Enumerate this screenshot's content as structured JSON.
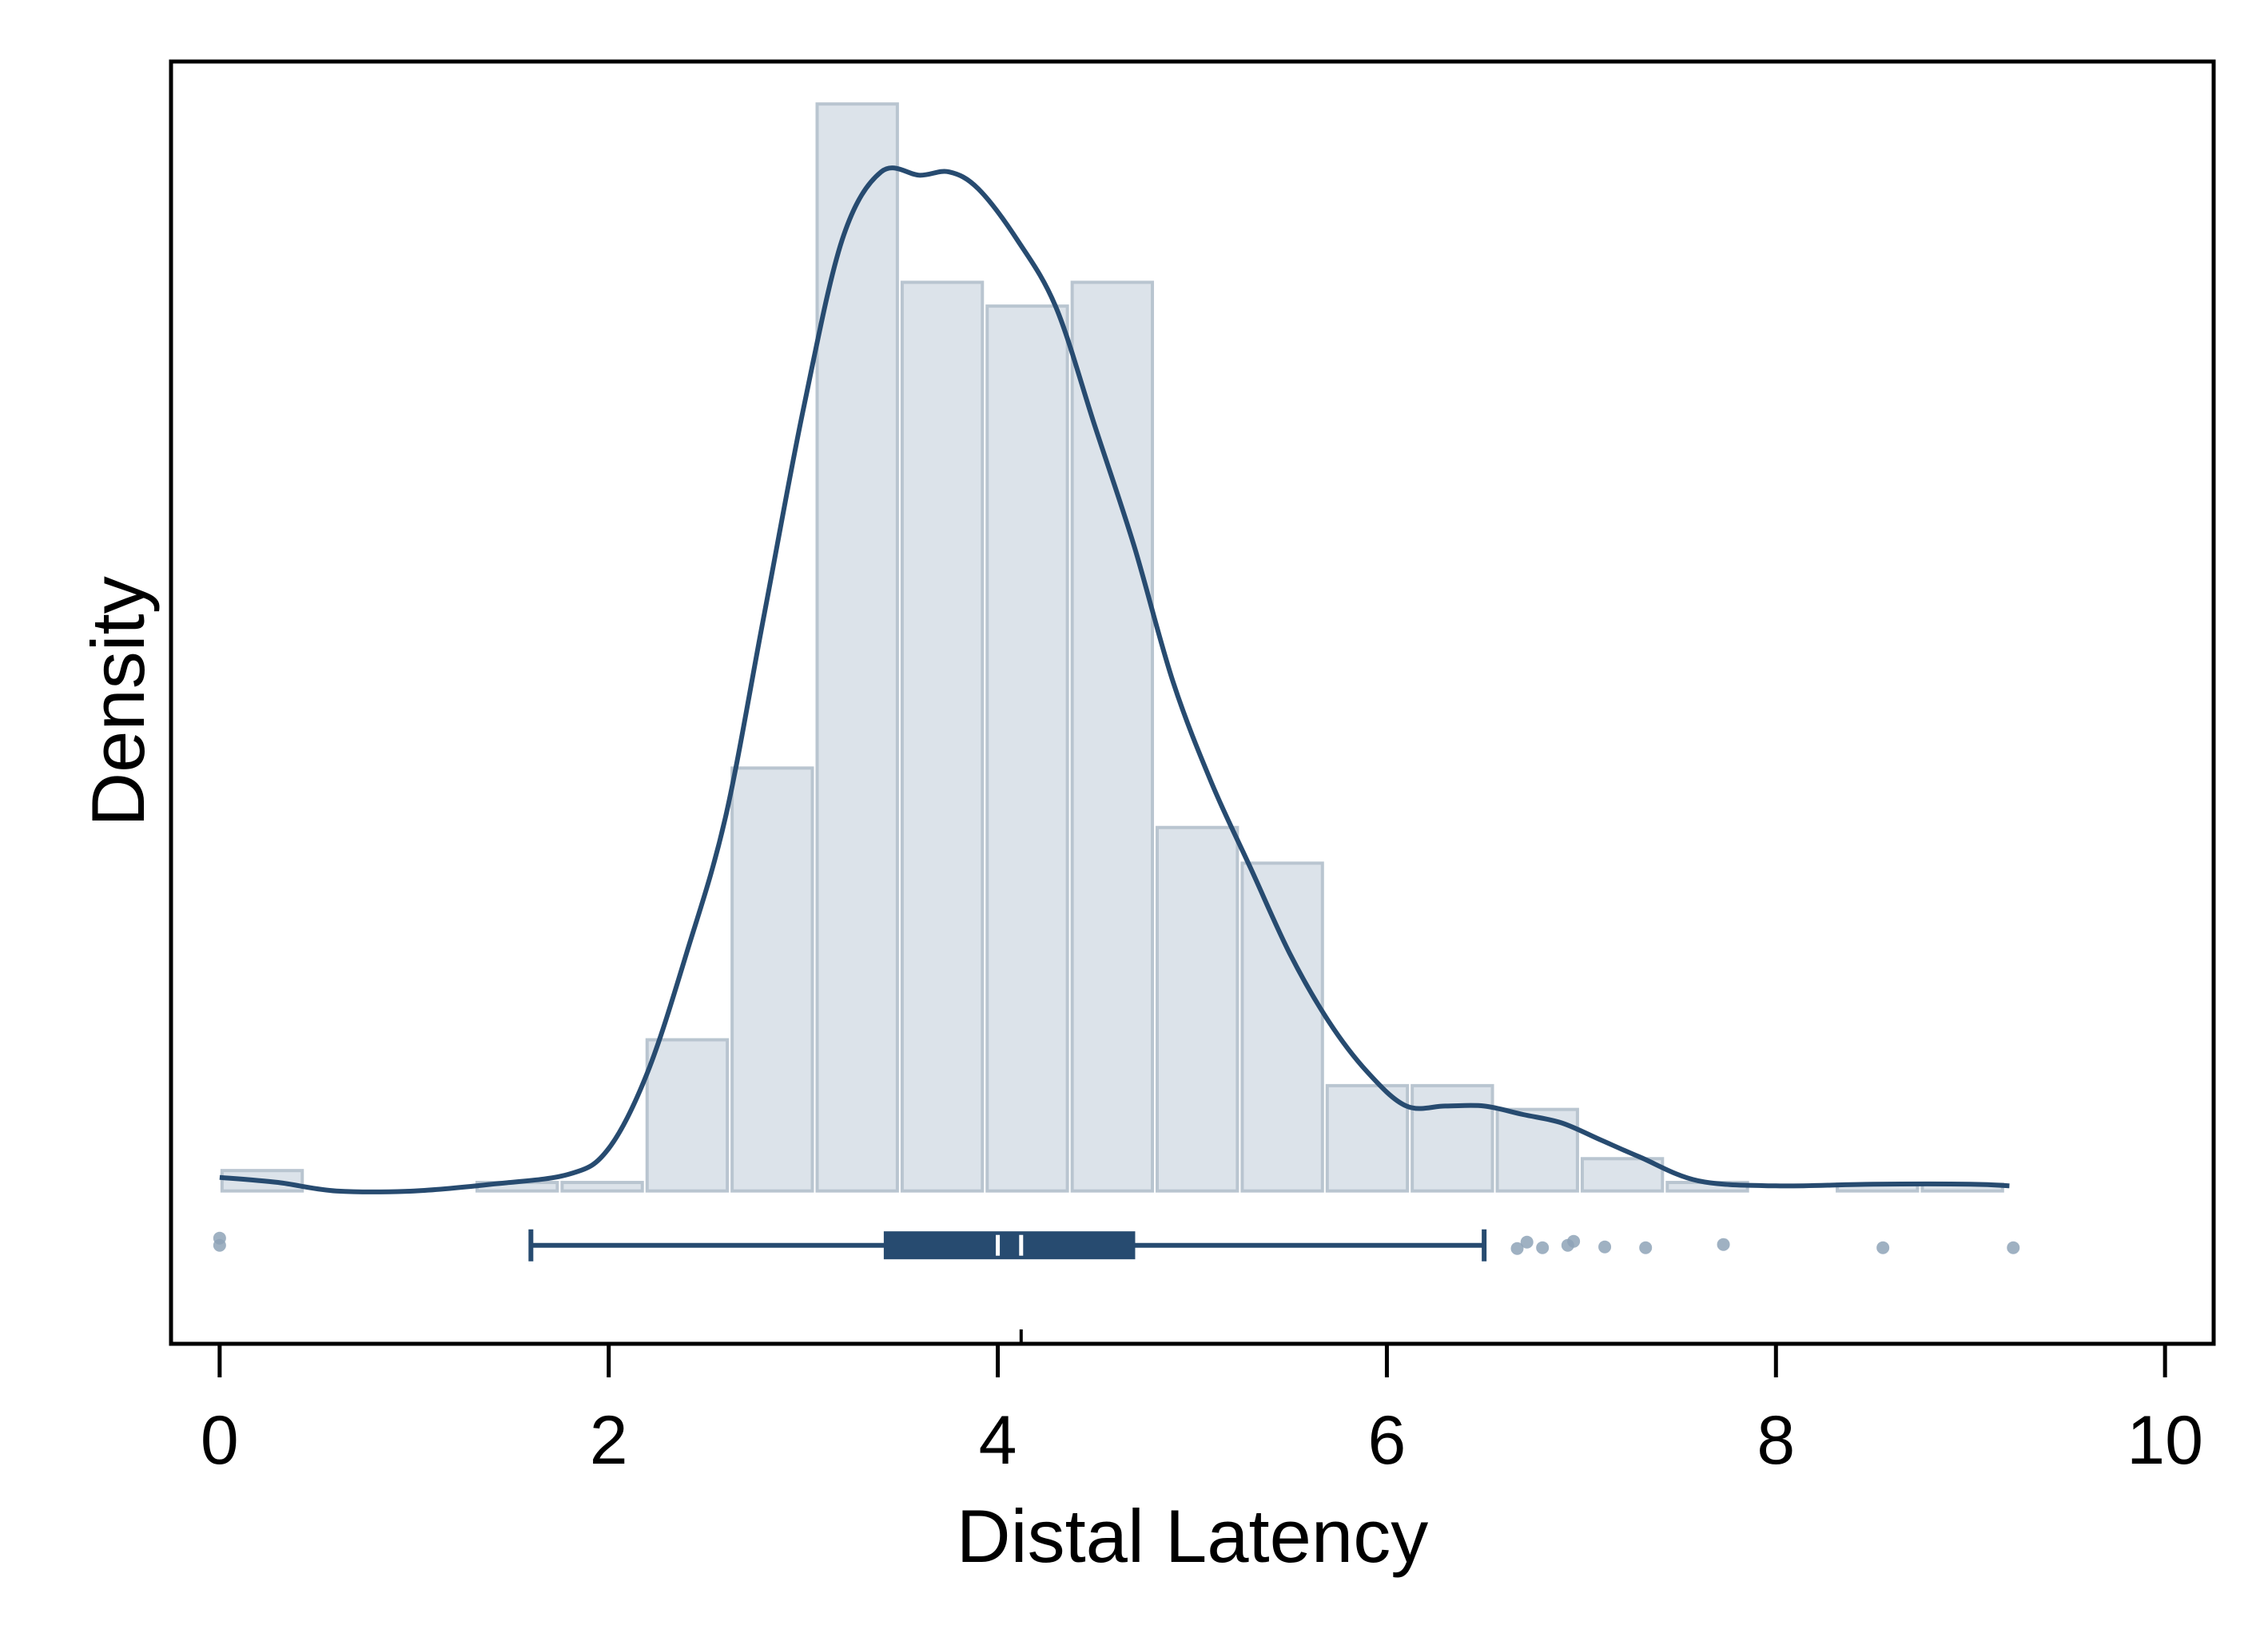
{
  "chart_data": {
    "type": "histogram",
    "xlabel": "Distal Latency",
    "ylabel": "Density",
    "xlim": [
      -0.25,
      10.25
    ],
    "ylim": [
      -0.09,
      0.665
    ],
    "x_ticks": [
      0,
      2,
      4,
      6,
      8,
      10
    ],
    "x_tick_labels": [
      "0",
      "2",
      "4",
      "6",
      "8",
      "10"
    ],
    "y_ticks_visible": false,
    "grid": false,
    "legend": "none",
    "colors": {
      "bar_fill": "#dce3ea",
      "bar_stroke": "#b9c5d0",
      "kde_line": "#274b70",
      "box": "#274b70",
      "points": "#8ea3b7",
      "frame": "#000000"
    },
    "histogram": {
      "bins": [
        {
          "x0": 0.0,
          "x1": 0.437,
          "density": 0.012
        },
        {
          "x0": 0.437,
          "x1": 0.874,
          "density": 0.0
        },
        {
          "x0": 0.874,
          "x1": 1.311,
          "density": 0.0
        },
        {
          "x0": 1.311,
          "x1": 1.748,
          "density": 0.005
        },
        {
          "x0": 1.748,
          "x1": 2.185,
          "density": 0.005
        },
        {
          "x0": 2.185,
          "x1": 2.622,
          "density": 0.089
        },
        {
          "x0": 2.622,
          "x1": 3.059,
          "density": 0.249
        },
        {
          "x0": 3.059,
          "x1": 3.496,
          "density": 0.64
        },
        {
          "x0": 3.496,
          "x1": 3.933,
          "density": 0.535
        },
        {
          "x0": 3.933,
          "x1": 4.37,
          "density": 0.521
        },
        {
          "x0": 4.37,
          "x1": 4.807,
          "density": 0.535
        },
        {
          "x0": 4.807,
          "x1": 5.244,
          "density": 0.214
        },
        {
          "x0": 5.244,
          "x1": 5.681,
          "density": 0.193
        },
        {
          "x0": 5.681,
          "x1": 6.118,
          "density": 0.062
        },
        {
          "x0": 6.118,
          "x1": 6.555,
          "density": 0.062
        },
        {
          "x0": 6.555,
          "x1": 6.992,
          "density": 0.048
        },
        {
          "x0": 6.992,
          "x1": 7.429,
          "density": 0.019
        },
        {
          "x0": 7.429,
          "x1": 7.866,
          "density": 0.005
        },
        {
          "x0": 7.866,
          "x1": 8.303,
          "density": 0.0
        },
        {
          "x0": 8.303,
          "x1": 8.74,
          "density": 0.004
        },
        {
          "x0": 8.74,
          "x1": 9.177,
          "density": 0.004
        }
      ]
    },
    "kde": {
      "x": [
        0.0,
        0.3,
        0.6,
        1.0,
        1.4,
        1.8,
        2.0,
        2.2,
        2.4,
        2.6,
        2.8,
        3.0,
        3.2,
        3.4,
        3.6,
        3.75,
        3.9,
        4.1,
        4.3,
        4.5,
        4.7,
        4.9,
        5.1,
        5.3,
        5.5,
        5.7,
        5.9,
        6.1,
        6.3,
        6.5,
        6.7,
        6.9,
        7.1,
        7.3,
        7.6,
        8.0,
        8.5,
        9.0,
        9.2
      ],
      "y": [
        0.008,
        0.005,
        0.0,
        0.0,
        0.004,
        0.01,
        0.025,
        0.07,
        0.14,
        0.22,
        0.34,
        0.46,
        0.56,
        0.6,
        0.598,
        0.6,
        0.59,
        0.56,
        0.52,
        0.45,
        0.38,
        0.3,
        0.24,
        0.19,
        0.14,
        0.1,
        0.07,
        0.05,
        0.05,
        0.05,
        0.045,
        0.04,
        0.03,
        0.02,
        0.006,
        0.003,
        0.004,
        0.004,
        0.003
      ]
    },
    "boxplot": {
      "whisker_low": 1.6,
      "q1": 3.42,
      "median": 4.0,
      "mean": 4.12,
      "q3": 4.7,
      "whisker_high": 6.5,
      "outliers": [
        0.0,
        0.0,
        6.67,
        6.72,
        6.8,
        6.93,
        6.96,
        7.12,
        7.33,
        7.73,
        8.55,
        9.22
      ]
    }
  }
}
